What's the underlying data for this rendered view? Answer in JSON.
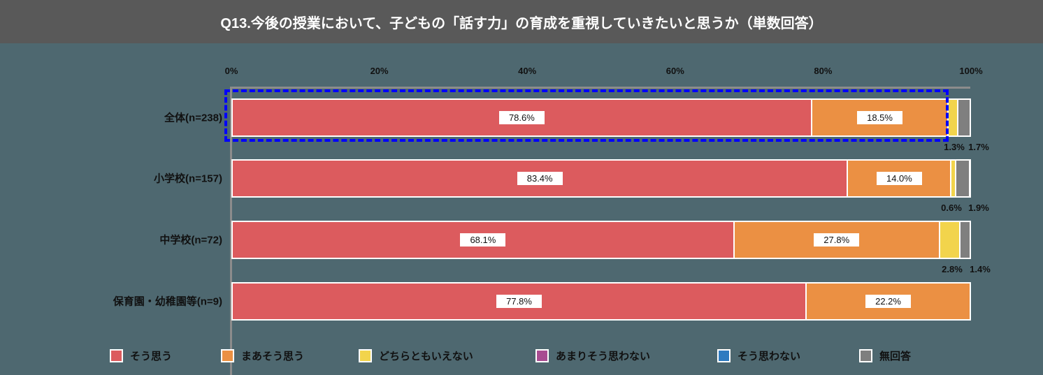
{
  "title": "Q13.今後の授業において、子どもの「話す力」の育成を重視していきたいと思うか（単数回答）",
  "colors": {
    "background": "#4e6870",
    "title_bar": "#595959",
    "highlight_border": "#0000ff"
  },
  "axis": {
    "ticks": [
      "0%",
      "20%",
      "40%",
      "60%",
      "80%",
      "100%"
    ]
  },
  "legend": [
    {
      "label": "そう思う",
      "color": "#dc5b5e"
    },
    {
      "label": "まあそう思う",
      "color": "#eb9043"
    },
    {
      "label": "どちらともいえない",
      "color": "#f2d44c"
    },
    {
      "label": "あまりそう思わない",
      "color": "#a84c91"
    },
    {
      "label": "そう思わない",
      "color": "#2f7bc0"
    },
    {
      "label": "無回答",
      "color": "#7f7f7f"
    }
  ],
  "rows": [
    {
      "label": "全体(n=238)",
      "values": [
        78.6,
        18.5,
        1.3,
        0,
        0,
        1.7
      ],
      "labels": [
        "78.6%",
        "18.5%",
        "1.3%",
        "",
        "",
        "1.7%"
      ],
      "highlighted": true
    },
    {
      "label": "小学校(n=157)",
      "values": [
        83.4,
        14.0,
        0.6,
        0,
        0,
        1.9
      ],
      "labels": [
        "83.4%",
        "14.0%",
        "0.6%",
        "",
        "",
        "1.9%"
      ]
    },
    {
      "label": "中学校(n=72)",
      "values": [
        68.1,
        27.8,
        2.8,
        0,
        0,
        1.4
      ],
      "labels": [
        "68.1%",
        "27.8%",
        "2.8%",
        "",
        "",
        "1.4%"
      ]
    },
    {
      "label": "保育園・幼稚園等(n=9)",
      "values": [
        77.8,
        22.2,
        0,
        0,
        0,
        0
      ],
      "labels": [
        "77.8%",
        "22.2%",
        "",
        "",
        "",
        ""
      ]
    }
  ],
  "chart_data": {
    "type": "bar",
    "orientation": "horizontal-stacked-100",
    "title": "Q13.今後の授業において、子どもの「話す力」の育成を重視していきたいと思うか（単数回答）",
    "categories": [
      "全体(n=238)",
      "小学校(n=157)",
      "中学校(n=72)",
      "保育園・幼稚園等(n=9)"
    ],
    "series": [
      {
        "name": "そう思う",
        "color": "#dc5b5e",
        "values": [
          78.6,
          83.4,
          68.1,
          77.8
        ]
      },
      {
        "name": "まあそう思う",
        "color": "#eb9043",
        "values": [
          18.5,
          14.0,
          27.8,
          22.2
        ]
      },
      {
        "name": "どちらともいえない",
        "color": "#f2d44c",
        "values": [
          1.3,
          0.6,
          2.8,
          0
        ]
      },
      {
        "name": "あまりそう思わない",
        "color": "#a84c91",
        "values": [
          0,
          0,
          0,
          0
        ]
      },
      {
        "name": "そう思わない",
        "color": "#2f7bc0",
        "values": [
          0,
          0,
          0,
          0
        ]
      },
      {
        "name": "無回答",
        "color": "#7f7f7f",
        "values": [
          1.7,
          1.9,
          1.4,
          0
        ]
      }
    ],
    "xlabel": "",
    "ylabel": "",
    "xlim": [
      0,
      100
    ],
    "x_ticks": [
      "0%",
      "20%",
      "40%",
      "60%",
      "80%",
      "100%"
    ],
    "grid": false,
    "legend_position": "bottom",
    "annotations": [
      "全体(n=238) row highlighted with blue dashed box"
    ]
  }
}
